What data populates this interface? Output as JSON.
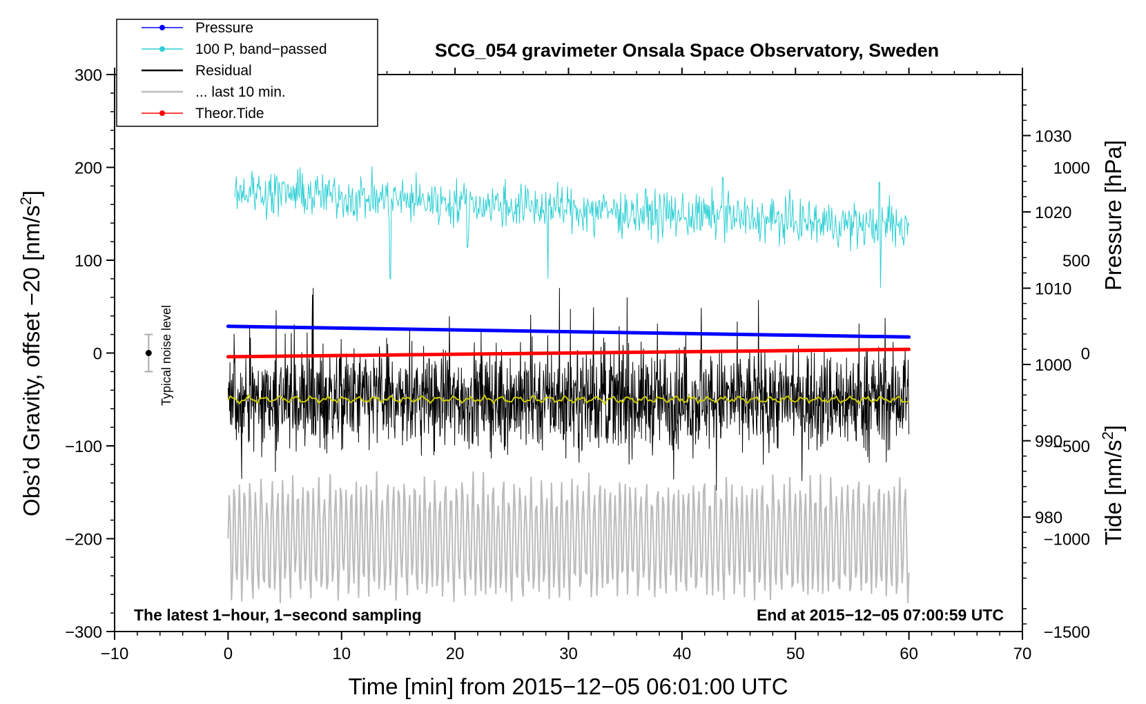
{
  "chart_data": {
    "type": "line",
    "title": "SCG_054 gravimeter Onsala Space Observatory, Sweden",
    "xlabel": "Time [min] from 2015−12−05 06:01:00 UTC",
    "ylabel_left": {
      "main": "Obs’d Gravity, offset −20 [nm/s",
      "sup": "2",
      "end": "]"
    },
    "ylabel_right_top": "Pressure [hPa]",
    "ylabel_right_bottom": {
      "main": "Tide [nm/s",
      "sup": "2",
      "end": "]"
    },
    "xlim": [
      -10,
      70
    ],
    "ylim_left": [
      -300,
      300
    ],
    "ylim_pressure": [
      965,
      1038
    ],
    "ylim_tide": [
      -1500,
      1500
    ],
    "x_ticks": [
      {
        "value": -10,
        "label": "−10"
      },
      {
        "value": 0,
        "label": "0"
      },
      {
        "value": 10,
        "label": "10"
      },
      {
        "value": 20,
        "label": "20"
      },
      {
        "value": 30,
        "label": "30"
      },
      {
        "value": 40,
        "label": "40"
      },
      {
        "value": 50,
        "label": "50"
      },
      {
        "value": 60,
        "label": "60"
      },
      {
        "value": 70,
        "label": "70"
      }
    ],
    "y_left_ticks": [
      {
        "value": 300,
        "label": "300"
      },
      {
        "value": 200,
        "label": "200"
      },
      {
        "value": 100,
        "label": "100"
      },
      {
        "value": 0,
        "label": "0"
      },
      {
        "value": -100,
        "label": "−100"
      },
      {
        "value": -200,
        "label": "−200"
      },
      {
        "value": -300,
        "label": "−300"
      }
    ],
    "y_pressure_ticks": [
      {
        "value": 1030,
        "label": "1030"
      },
      {
        "value": 1020,
        "label": "1020"
      },
      {
        "value": 1010,
        "label": "1010"
      },
      {
        "value": 1000,
        "label": "1000"
      },
      {
        "value": 990,
        "label": "990"
      },
      {
        "value": 980,
        "label": "980"
      }
    ],
    "y_tide_ticks": [
      {
        "value": 1000,
        "label": "1000"
      },
      {
        "value": 500,
        "label": "500"
      },
      {
        "value": 0,
        "label": "0"
      },
      {
        "value": -500,
        "label": "−500"
      },
      {
        "value": -1000,
        "label": "−1000"
      },
      {
        "value": -1500,
        "label": "−1500"
      }
    ],
    "legend": {
      "placement": "top-left",
      "entries": [
        {
          "label": "Pressure",
          "color": "#0000ff",
          "marker": true
        },
        {
          "label": "100 P, band−passed",
          "color": "#2ccfd4",
          "marker": true
        },
        {
          "label": "Residual",
          "color": "#000000",
          "marker": false
        },
        {
          "label": "... last 10 min.",
          "color": "#bbbbbb",
          "marker": false
        },
        {
          "label": "Theor.Tide",
          "color": "#ff0000",
          "marker": true
        }
      ]
    },
    "series": [
      {
        "name": "Pressure",
        "axis": "pressure",
        "color": "#0000ff",
        "points": [
          [
            0,
            1005.0
          ],
          [
            60,
            1003.6
          ]
        ]
      },
      {
        "name": "100 P, band−passed",
        "axis": "left",
        "color": "#2ccfd4",
        "baseline_start": 175,
        "baseline_end": 135,
        "noise_amplitude": 22,
        "spikes": [
          [
            14.3,
            80
          ],
          [
            21.1,
            114
          ],
          [
            28.2,
            80
          ],
          [
            32.3,
            124
          ],
          [
            43.6,
            189
          ],
          [
            44.1,
            175
          ],
          [
            57.4,
            184
          ],
          [
            58.3,
            170
          ],
          [
            57.5,
            70
          ]
        ]
      },
      {
        "name": "Residual",
        "axis": "left",
        "color": "#000000",
        "baseline": -50,
        "noise_amplitude": 60,
        "max": 70,
        "min": -148
      },
      {
        "name": "Residual smoothed",
        "axis": "left",
        "color": "#cccc00",
        "baseline": -50
      },
      {
        "name": "... last 10 min.",
        "axis": "left",
        "color": "#bbbbbb",
        "baseline": -200,
        "oscillation_amplitude": 60,
        "min": -270,
        "max": -125
      },
      {
        "name": "Theor.Tide",
        "axis": "tide",
        "color": "#ff0000",
        "points": [
          [
            0,
            -20
          ],
          [
            60,
            20
          ]
        ]
      }
    ],
    "noise_indicator": {
      "label": "Typical noise level",
      "x": -7,
      "center": 0,
      "half_range": 20
    },
    "annotation_left": "The latest 1−hour, 1−second sampling",
    "annotation_right": "End at 2015−12−05 07:00:59 UTC"
  }
}
